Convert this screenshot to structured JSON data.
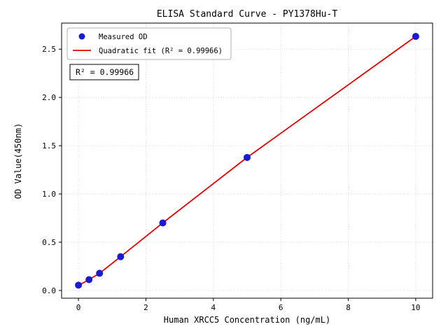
{
  "chart_data": {
    "type": "scatter",
    "title": "ELISA Standard Curve - PY1378Hu-T",
    "xlabel": "Human XRCC5 Concentration (ng/mL)",
    "ylabel": "OD Value(450nm)",
    "xlim": [
      -0.5,
      10.5
    ],
    "ylim": [
      -0.08,
      2.77
    ],
    "xticks": {
      "values": [
        0,
        2,
        4,
        6,
        8,
        10
      ],
      "labels": [
        "0",
        "2",
        "4",
        "6",
        "8",
        "10"
      ]
    },
    "yticks": {
      "values": [
        0,
        0.5,
        1.0,
        1.5,
        2.0,
        2.5
      ],
      "labels": [
        "0.0",
        "0.5",
        "1.0",
        "1.5",
        "2.0",
        "2.5"
      ]
    },
    "grid": true,
    "legend": {
      "position": "upper left",
      "entries": [
        {
          "label": "Measured OD",
          "marker": "dot",
          "color": "#1a1ad1"
        },
        {
          "label": "Quadratic fit (R² = 0.99966)",
          "marker": "line",
          "color": "#e80000"
        }
      ]
    },
    "annotation": "R² = 0.99966",
    "series": [
      {
        "name": "Measured OD",
        "type": "scatter",
        "color": "#1a1ad1",
        "x": [
          0,
          0.3125,
          0.625,
          1.25,
          2.5,
          5,
          10
        ],
        "y": [
          0.055,
          0.112,
          0.178,
          0.35,
          0.7,
          1.378,
          2.632
        ]
      },
      {
        "name": "Quadratic fit (R² = 0.99966)",
        "type": "line",
        "color": "#e80000",
        "x": [
          0,
          0.3125,
          0.625,
          1.25,
          2.5,
          5,
          10
        ],
        "y": [
          0.052,
          0.112,
          0.178,
          0.35,
          0.7,
          1.378,
          2.632
        ]
      }
    ]
  }
}
